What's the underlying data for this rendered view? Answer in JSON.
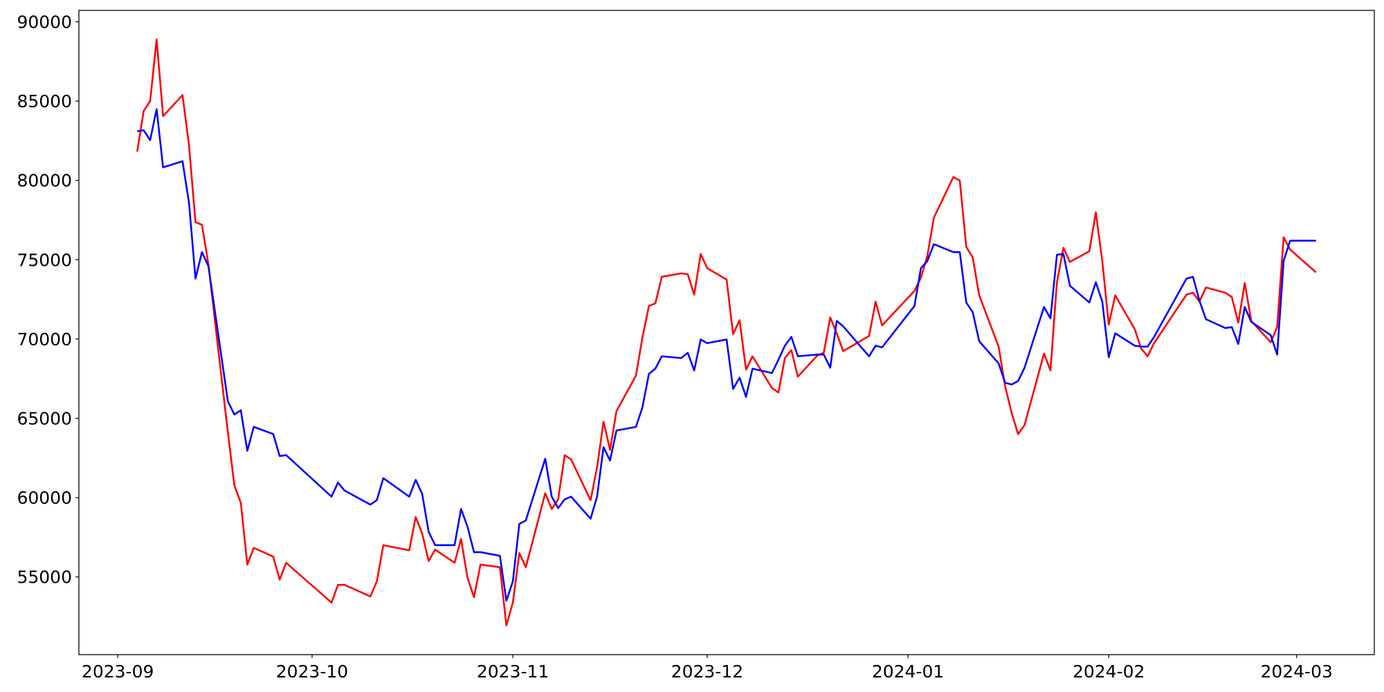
{
  "chart_data": {
    "type": "line",
    "x": [
      "2023-09-04",
      "2023-09-05",
      "2023-09-06",
      "2023-09-07",
      "2023-09-08",
      "2023-09-11",
      "2023-09-12",
      "2023-09-13",
      "2023-09-14",
      "2023-09-15",
      "2023-09-18",
      "2023-09-19",
      "2023-09-20",
      "2023-09-21",
      "2023-09-22",
      "2023-09-25",
      "2023-09-26",
      "2023-09-27",
      "2023-10-04",
      "2023-10-05",
      "2023-10-06",
      "2023-10-10",
      "2023-10-11",
      "2023-10-12",
      "2023-10-16",
      "2023-10-17",
      "2023-10-18",
      "2023-10-19",
      "2023-10-20",
      "2023-10-23",
      "2023-10-24",
      "2023-10-25",
      "2023-10-26",
      "2023-10-27",
      "2023-10-30",
      "2023-10-31",
      "2023-11-01",
      "2023-11-02",
      "2023-11-03",
      "2023-11-06",
      "2023-11-07",
      "2023-11-08",
      "2023-11-09",
      "2023-11-10",
      "2023-11-13",
      "2023-11-14",
      "2023-11-15",
      "2023-11-16",
      "2023-11-17",
      "2023-11-20",
      "2023-11-21",
      "2023-11-22",
      "2023-11-23",
      "2023-11-24",
      "2023-11-27",
      "2023-11-28",
      "2023-11-29",
      "2023-11-30",
      "2023-12-01",
      "2023-12-04",
      "2023-12-05",
      "2023-12-06",
      "2023-12-07",
      "2023-12-08",
      "2023-12-11",
      "2023-12-12",
      "2023-12-13",
      "2023-12-14",
      "2023-12-15",
      "2023-12-18",
      "2023-12-19",
      "2023-12-20",
      "2023-12-21",
      "2023-12-22",
      "2023-12-26",
      "2023-12-27",
      "2023-12-28",
      "2024-01-02",
      "2024-01-03",
      "2024-01-04",
      "2024-01-05",
      "2024-01-08",
      "2024-01-09",
      "2024-01-10",
      "2024-01-11",
      "2024-01-12",
      "2024-01-15",
      "2024-01-16",
      "2024-01-17",
      "2024-01-18",
      "2024-01-19",
      "2024-01-22",
      "2024-01-23",
      "2024-01-24",
      "2024-01-25",
      "2024-01-26",
      "2024-01-29",
      "2024-01-30",
      "2024-01-31",
      "2024-02-01",
      "2024-02-02",
      "2024-02-05",
      "2024-02-06",
      "2024-02-07",
      "2024-02-08",
      "2024-02-13",
      "2024-02-14",
      "2024-02-15",
      "2024-02-16",
      "2024-02-19",
      "2024-02-20",
      "2024-02-21",
      "2024-02-22",
      "2024-02-23",
      "2024-02-26",
      "2024-02-27",
      "2024-02-28",
      "2024-02-29",
      "2024-03-04"
    ],
    "series": [
      {
        "color": "#ff0000",
        "values": [
          81820,
          84380,
          85000,
          88890,
          84050,
          85380,
          82210,
          77370,
          77200,
          74700,
          64120,
          60780,
          59670,
          55780,
          56830,
          56280,
          54830,
          55890,
          53380,
          54500,
          54500,
          53770,
          54720,
          57000,
          56680,
          58780,
          57730,
          56000,
          56720,
          55890,
          57390,
          54940,
          53720,
          55780,
          55610,
          51940,
          53380,
          56500,
          55610,
          60280,
          59280,
          59890,
          62680,
          62400,
          59840,
          61900,
          64790,
          63010,
          65460,
          67690,
          70080,
          72080,
          72250,
          73920,
          74140,
          74080,
          72800,
          75360,
          74470,
          73750,
          70300,
          71190,
          68070,
          68910,
          66910,
          66630,
          68800,
          69300,
          67630,
          68960,
          69130,
          71360,
          70360,
          69240,
          70190,
          72360,
          70860,
          73030,
          73860,
          75250,
          77650,
          80210,
          79990,
          75810,
          75140,
          72750,
          69520,
          67020,
          65350,
          64010,
          64570,
          69080,
          68020,
          73580,
          75750,
          74860,
          75530,
          77980,
          74920,
          70910,
          72750,
          70630,
          69410,
          68910,
          69740,
          72800,
          72920,
          72360,
          73250,
          72920,
          72640,
          71030,
          73530,
          71140,
          69800,
          70750,
          76420,
          75640,
          74200
        ]
      },
      {
        "color": "#0000ff",
        "values": [
          83100,
          83160,
          82540,
          84490,
          80820,
          81210,
          78590,
          73810,
          75480,
          74590,
          66070,
          65240,
          65510,
          62950,
          64460,
          64010,
          62620,
          62680,
          60060,
          60950,
          60450,
          59560,
          59840,
          61230,
          60060,
          61120,
          60230,
          57840,
          57000,
          57000,
          59280,
          58170,
          56560,
          56560,
          56330,
          53500,
          54720,
          58340,
          58560,
          62450,
          60060,
          59340,
          59890,
          60060,
          58670,
          60060,
          63180,
          62340,
          64230,
          64460,
          65680,
          67800,
          68130,
          68910,
          68800,
          69130,
          68020,
          69970,
          69740,
          69970,
          66850,
          67570,
          66350,
          68130,
          67850,
          68690,
          69580,
          70130,
          68910,
          69020,
          69020,
          68190,
          71140,
          70800,
          68910,
          69580,
          69470,
          72080,
          74470,
          74920,
          75980,
          75480,
          75480,
          72300,
          71690,
          69860,
          68460,
          67240,
          67130,
          67350,
          68190,
          72020,
          71300,
          75310,
          75360,
          73360,
          72300,
          73580,
          72360,
          68850,
          70360,
          69580,
          69520,
          69520,
          70130,
          73810,
          73920,
          72420,
          71250,
          70690,
          70750,
          69690,
          72020,
          71080,
          70250,
          69020,
          74920,
          76200,
          76200
        ]
      }
    ],
    "xlim": [
      "2023-08-26",
      "2024-03-13"
    ],
    "xticks": [
      {
        "value": "2023-09-01",
        "label": "2023-09"
      },
      {
        "value": "2023-10-01",
        "label": "2023-10"
      },
      {
        "value": "2023-11-01",
        "label": "2023-11"
      },
      {
        "value": "2023-12-01",
        "label": "2023-12"
      },
      {
        "value": "2024-01-01",
        "label": "2024-01"
      },
      {
        "value": "2024-02-01",
        "label": "2024-02"
      },
      {
        "value": "2024-03-01",
        "label": "2024-03"
      }
    ],
    "ylim": [
      50100,
      90720
    ],
    "yticks": [
      55000,
      60000,
      65000,
      70000,
      75000,
      80000,
      85000,
      90000
    ],
    "grid": false
  }
}
